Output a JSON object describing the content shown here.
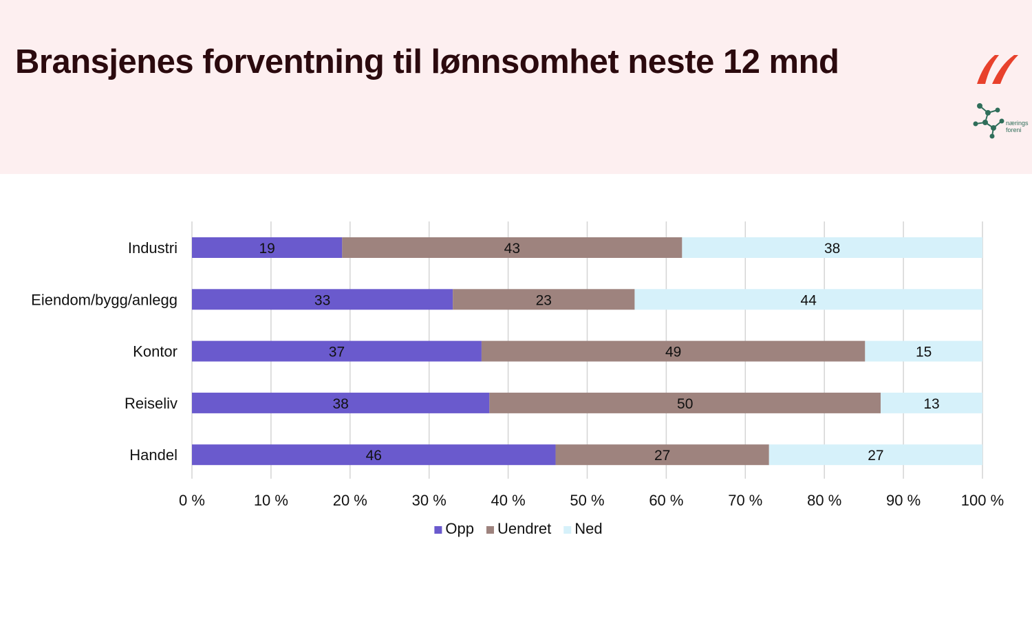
{
  "header": {
    "title": "Bransjenes forventning til lønnsomhet neste 12 mnd",
    "logo_primary_icon": "red-swoosh-logo",
    "logo_secondary_icon": "network-logo",
    "logo_secondary_text": [
      "nærings",
      "foreni"
    ]
  },
  "colors": {
    "header_bg": "#fdeff0",
    "opp": "#6a5acd",
    "uendret": "#9e837e",
    "ned": "#d6f1fa"
  },
  "chart_data": {
    "type": "bar",
    "orientation": "horizontal",
    "stacked": true,
    "normalized_percent": true,
    "categories": [
      "Industri",
      "Eiendom/bygg/anlegg",
      "Kontor",
      "Reiseliv",
      "Handel"
    ],
    "series": [
      {
        "name": "Opp",
        "color": "#6a5acd",
        "values": [
          19,
          33,
          37,
          38,
          46
        ]
      },
      {
        "name": "Uendret",
        "color": "#9e837e",
        "values": [
          43,
          23,
          49,
          50,
          27
        ]
      },
      {
        "name": "Ned",
        "color": "#d6f1fa",
        "values": [
          38,
          44,
          15,
          13,
          27
        ]
      }
    ],
    "x_ticks": [
      "0 %",
      "10 %",
      "20 %",
      "30 %",
      "40 %",
      "50 %",
      "60 %",
      "70 %",
      "80 %",
      "90 %",
      "100 %"
    ],
    "xlim": [
      0,
      100
    ],
    "grid": true,
    "legend_position": "bottom"
  }
}
